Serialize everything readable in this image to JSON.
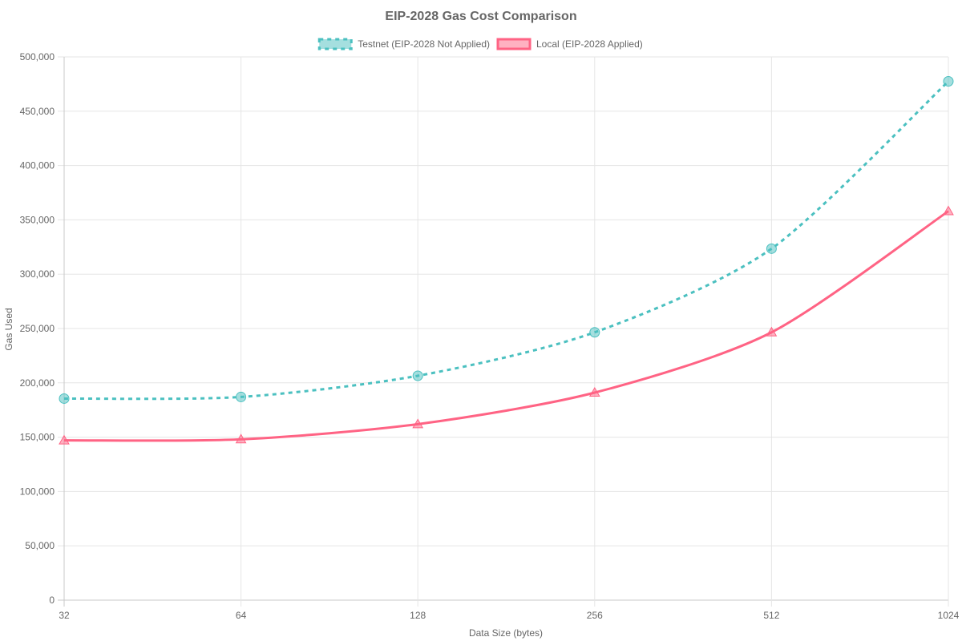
{
  "chart_data": {
    "type": "line",
    "title": "EIP-2028 Gas Cost Comparison",
    "xlabel": "Data Size (bytes)",
    "ylabel": "Gas Used",
    "x_scale": "log2",
    "categories": [
      "32",
      "64",
      "128",
      "256",
      "512",
      "1024"
    ],
    "x": [
      32,
      64,
      128,
      256,
      512,
      1024
    ],
    "ylim": [
      0,
      500000
    ],
    "y_ticks": [
      "0",
      "50,000",
      "100,000",
      "150,000",
      "200,000",
      "250,000",
      "300,000",
      "350,000",
      "400,000",
      "450,000",
      "500,000"
    ],
    "grid": true,
    "legend_position": "top",
    "series": [
      {
        "name": "Testnet (EIP-2028 Not Applied)",
        "values": [
          185500,
          187000,
          206500,
          246500,
          323500,
          477500
        ],
        "color": "#4bc0c0",
        "fill": "rgba(75,192,192,0.5)",
        "dash": "dashed",
        "marker": "circle"
      },
      {
        "name": "Local (EIP-2028 Applied)",
        "values": [
          147000,
          148000,
          162000,
          191000,
          246500,
          358000
        ],
        "color": "#ff6384",
        "fill": "rgba(255,99,132,0.5)",
        "dash": "solid",
        "marker": "triangle"
      }
    ]
  }
}
